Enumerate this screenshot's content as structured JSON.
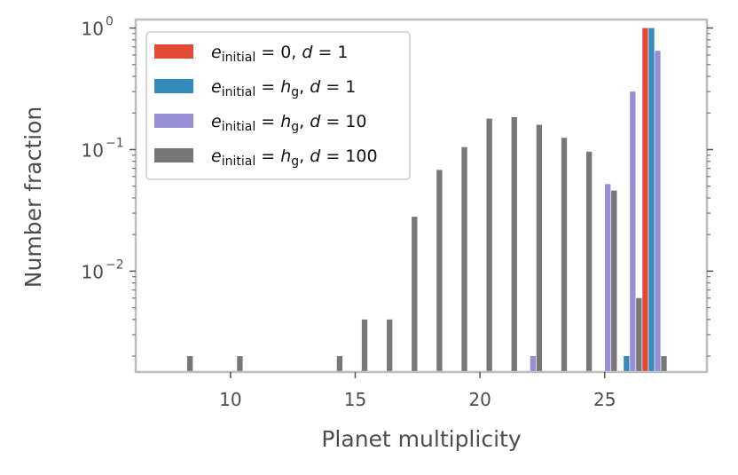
{
  "chart_data": {
    "type": "bar",
    "xlabel": "Planet multiplicity",
    "ylabel": "Number fraction",
    "xlim": [
      6.2,
      29.1
    ],
    "ylim_log10": [
      -2.83,
      0.07
    ],
    "yscale": "log",
    "x_ticks": [
      10,
      15,
      20,
      25
    ],
    "x_tick_labels": [
      "10",
      "15",
      "20",
      "25"
    ],
    "y_ticks_major": [
      {
        "base": "10",
        "exp": "0",
        "value": 1
      },
      {
        "base": "10",
        "exp": "−1",
        "value": 0.1
      },
      {
        "base": "10",
        "exp": "−2",
        "value": 0.01
      }
    ],
    "legend_position": "upper-left",
    "series": [
      {
        "name": "e_initial = 0, d = 1",
        "label_var": "e",
        "label_sub": "initial",
        "label_rest": " = 0, ",
        "label_d": "d",
        "label_dval": " = 1",
        "color": "#e24a33",
        "points": [
          [
            27,
            1.0
          ]
        ]
      },
      {
        "name": "e_initial = h_g, d = 1",
        "label_var": "e",
        "label_sub": "initial",
        "label_rest": " = ",
        "label_h": "h",
        "label_hsub": "g",
        "label_d": "d",
        "label_dval": " = 1",
        "color": "#348abd",
        "points": [
          [
            26,
            0.002
          ],
          [
            27,
            1.0
          ]
        ]
      },
      {
        "name": "e_initial = h_g, d = 10",
        "label_var": "e",
        "label_sub": "initial",
        "label_rest": " = ",
        "label_h": "h",
        "label_hsub": "g",
        "label_d": "d",
        "label_dval": " = 10",
        "color": "#988ed5",
        "points": [
          [
            22,
            0.002
          ],
          [
            25,
            0.052
          ],
          [
            26,
            0.3
          ],
          [
            27,
            0.65
          ]
        ]
      },
      {
        "name": "e_initial = h_g, d = 100",
        "label_var": "e",
        "label_sub": "initial",
        "label_rest": " = ",
        "label_h": "h",
        "label_hsub": "g",
        "label_d": "d",
        "label_dval": " = 100",
        "color": "#777777",
        "points": [
          [
            8,
            0.002
          ],
          [
            10,
            0.002
          ],
          [
            14,
            0.002
          ],
          [
            15,
            0.004
          ],
          [
            16,
            0.004
          ],
          [
            17,
            0.028
          ],
          [
            18,
            0.068
          ],
          [
            19,
            0.105
          ],
          [
            20,
            0.18
          ],
          [
            21,
            0.185
          ],
          [
            22,
            0.16
          ],
          [
            23,
            0.125
          ],
          [
            24,
            0.096
          ],
          [
            25,
            0.046
          ],
          [
            26,
            0.006
          ],
          [
            27,
            0.002
          ]
        ]
      }
    ]
  }
}
